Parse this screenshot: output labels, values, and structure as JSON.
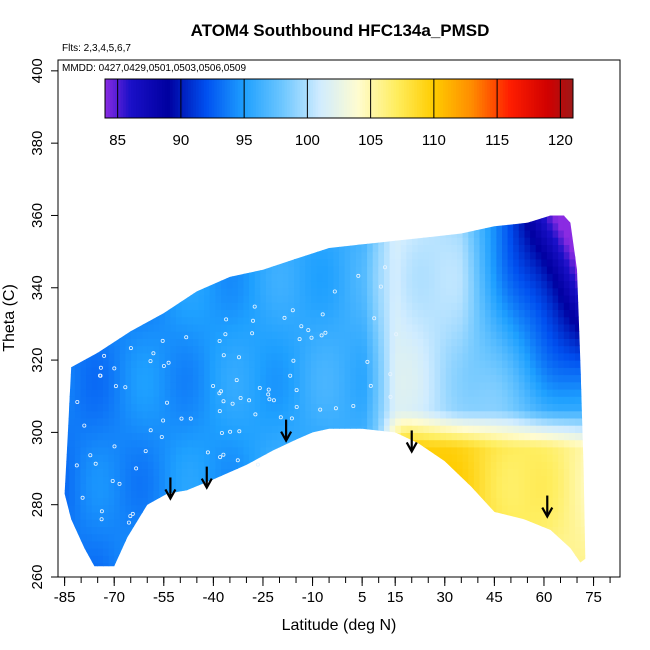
{
  "chart_data": {
    "type": "heatmap",
    "title": "ATOM4 Southbound HFC134a_PMSD",
    "annotations": [
      "Flts: 2,3,4,5,6,7",
      "MMDD: 0427,0429,0501,0503,0506,0509"
    ],
    "xlabel": "Latitude (deg N)",
    "ylabel": "Theta (C)",
    "xlim": [
      -87,
      83
    ],
    "ylim": [
      260,
      403
    ],
    "x_ticks": [
      -85,
      -70,
      -55,
      -40,
      -25,
      -10,
      5,
      15,
      30,
      45,
      60,
      75
    ],
    "y_ticks": [
      260,
      280,
      300,
      320,
      340,
      360,
      380,
      400
    ],
    "colorbar": {
      "range": [
        84,
        121
      ],
      "ticks": [
        85,
        90,
        95,
        100,
        105,
        110,
        115,
        120
      ],
      "stops": [
        {
          "v": 84,
          "c": "#8a2be2"
        },
        {
          "v": 86,
          "c": "#1a10c8"
        },
        {
          "v": 89,
          "c": "#0000a0"
        },
        {
          "v": 92,
          "c": "#0050f0"
        },
        {
          "v": 95,
          "c": "#1ea0ff"
        },
        {
          "v": 98,
          "c": "#6cc6ff"
        },
        {
          "v": 101,
          "c": "#d0ecff"
        },
        {
          "v": 104,
          "c": "#fffcd0"
        },
        {
          "v": 107,
          "c": "#ffee60"
        },
        {
          "v": 110,
          "c": "#ffcc00"
        },
        {
          "v": 113,
          "c": "#ff8c00"
        },
        {
          "v": 116,
          "c": "#ff1e00"
        },
        {
          "v": 119,
          "c": "#d00000"
        },
        {
          "v": 121,
          "c": "#a01818"
        }
      ]
    },
    "arrows": [
      {
        "lat": -53,
        "theta": 282
      },
      {
        "lat": -42,
        "theta": 285
      },
      {
        "lat": -18,
        "theta": 298
      },
      {
        "lat": 20,
        "theta": 295
      },
      {
        "lat": 61,
        "theta": 277
      }
    ]
  }
}
